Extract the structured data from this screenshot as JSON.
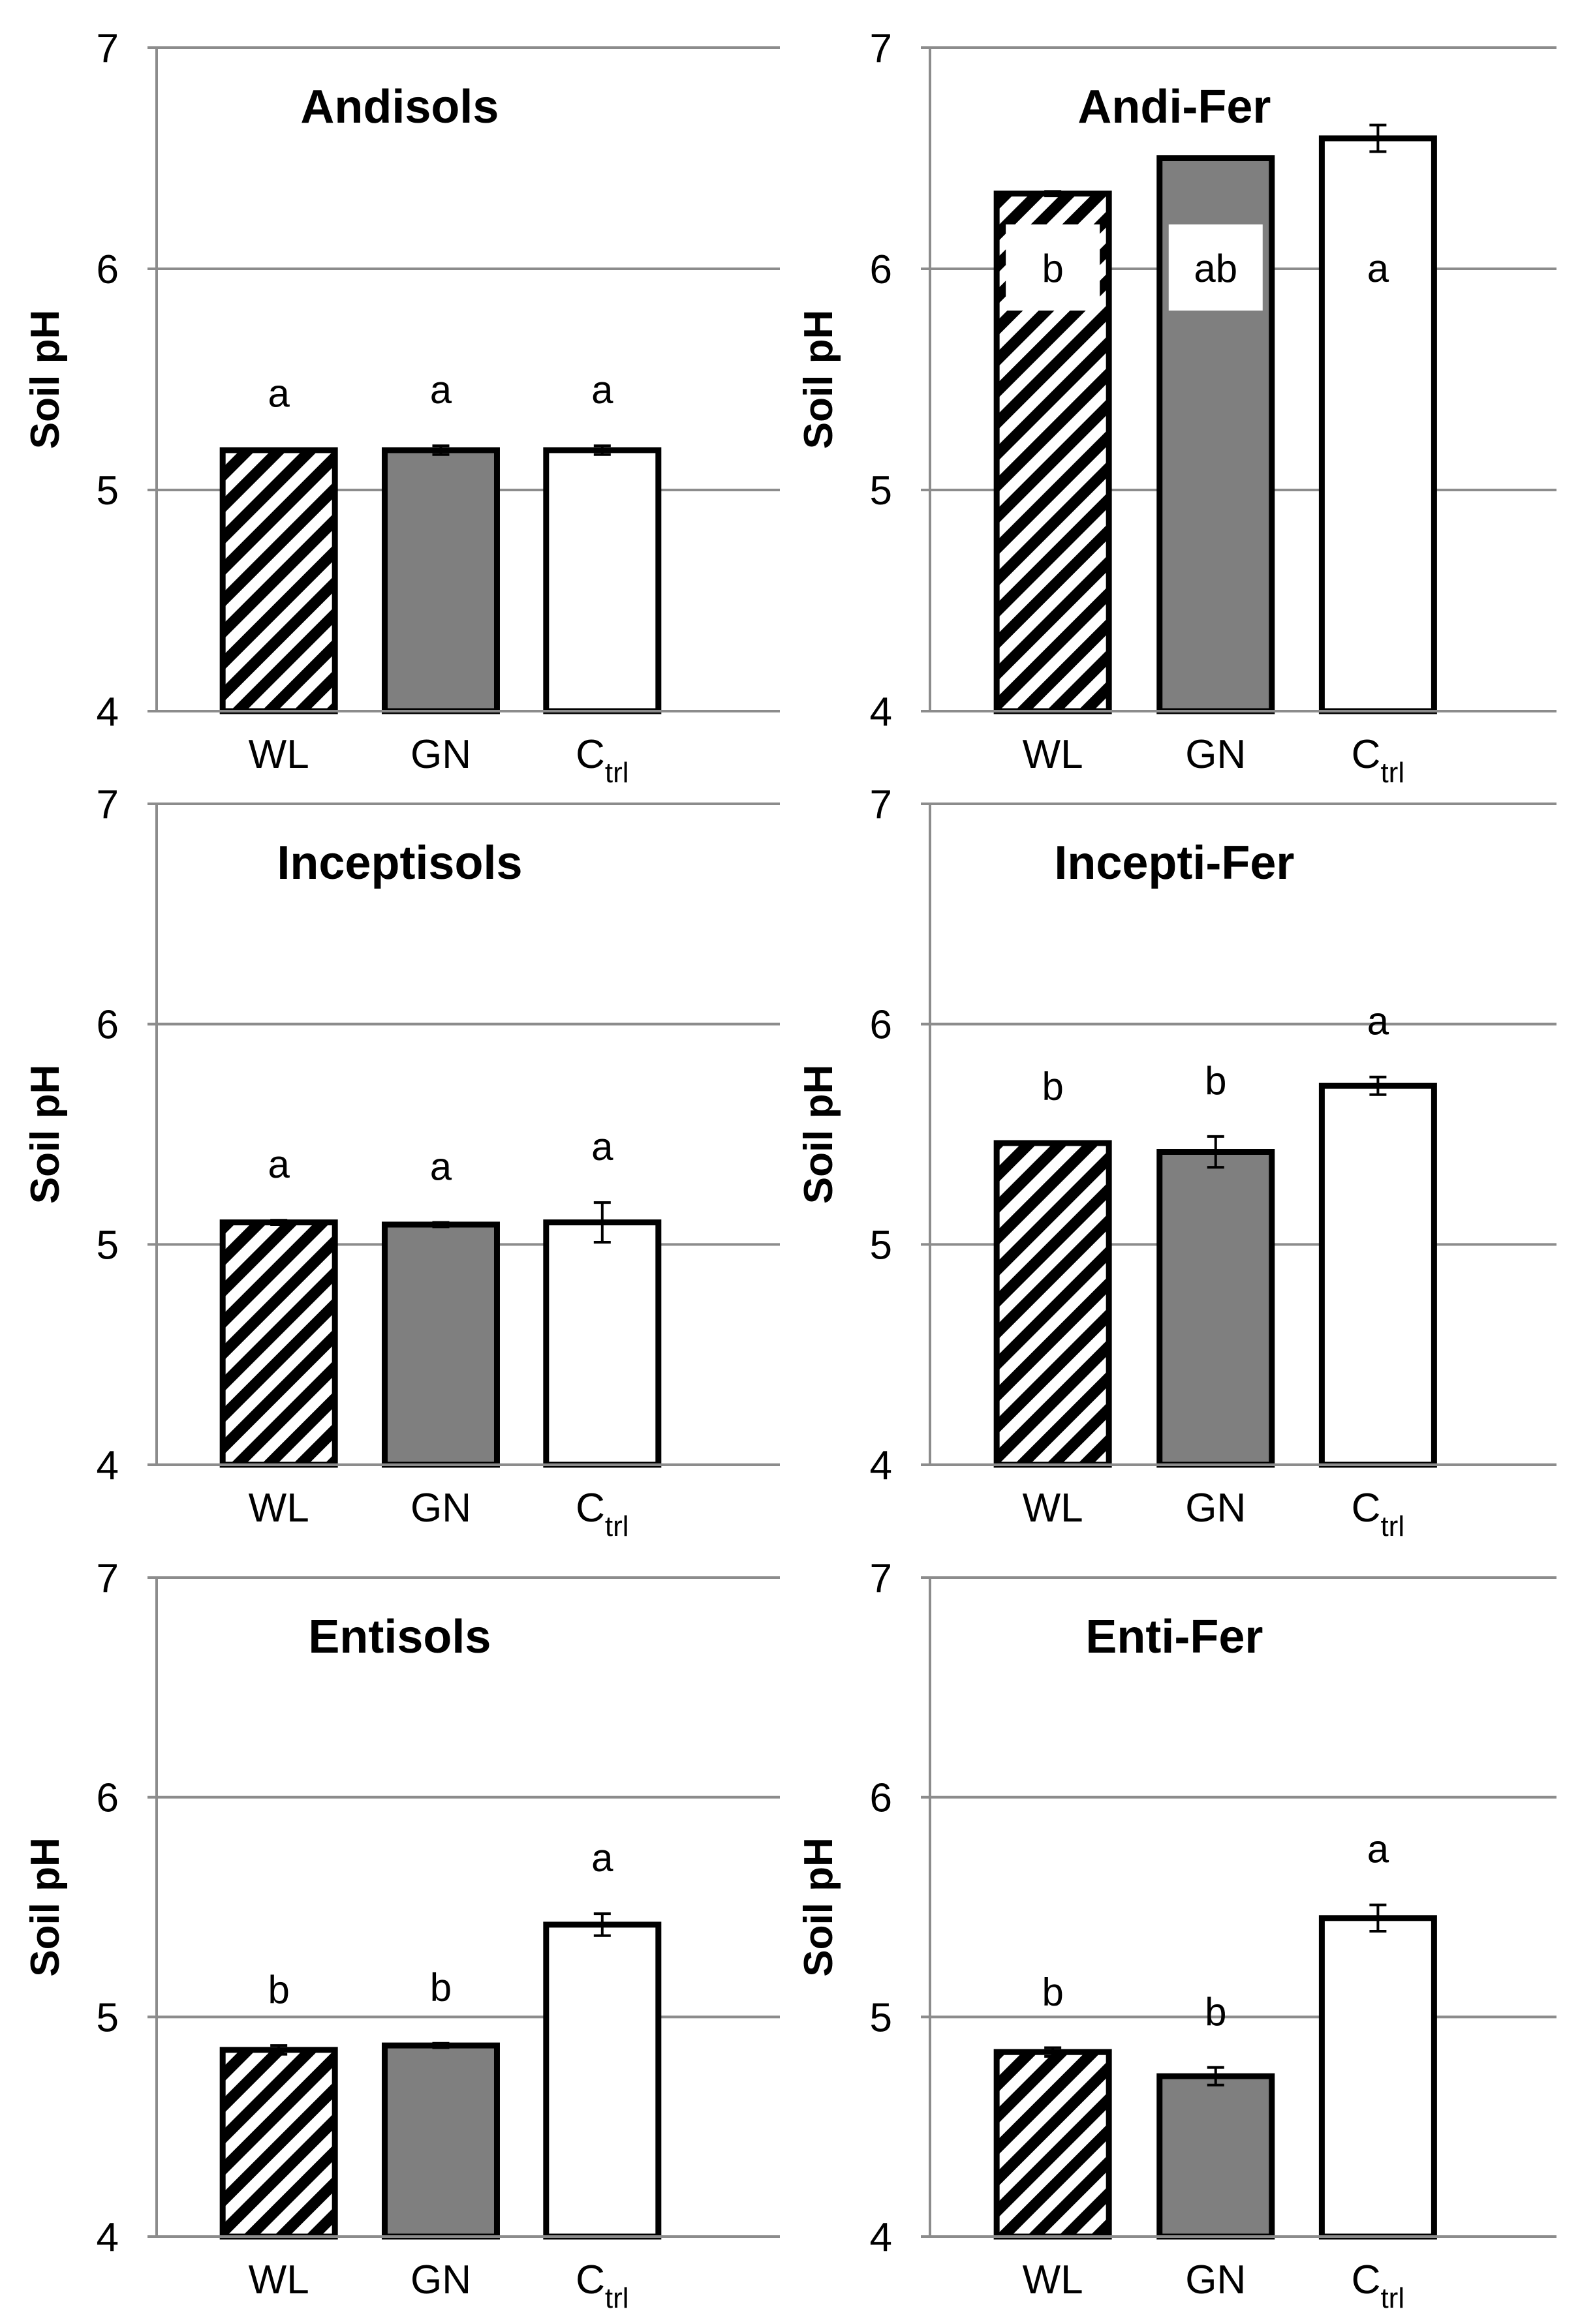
{
  "colors": {
    "wl_fill": "hatch",
    "gn_fill": "#7f7f7f",
    "ctrl_fill": "#ffffff",
    "grid": "#8c8c8c",
    "bar_edge": "#000000"
  },
  "chart_data": [
    {
      "type": "bar",
      "title": "Andisols",
      "ylabel": "Soil pH",
      "ylim": [
        4,
        7
      ],
      "yticks": [
        "4",
        "5",
        "6",
        "7"
      ],
      "categories": [
        "WL",
        "GN",
        "Ctrl"
      ],
      "category_labels": [
        {
          "main": "WL",
          "sub": ""
        },
        {
          "main": "GN",
          "sub": ""
        },
        {
          "main": "C",
          "sub": "trl"
        }
      ],
      "values": [
        5.18,
        5.18,
        5.18
      ],
      "errors": [
        0.005,
        0.02,
        0.02
      ],
      "significance": [
        "a",
        "a",
        "a"
      ]
    },
    {
      "type": "bar",
      "title": "Andi-Fer",
      "ylabel": "Soil pH",
      "ylim": [
        4,
        7
      ],
      "yticks": [
        "4",
        "5",
        "6",
        "7"
      ],
      "categories": [
        "WL",
        "GN",
        "Ctrl"
      ],
      "category_labels": [
        {
          "main": "WL",
          "sub": ""
        },
        {
          "main": "GN",
          "sub": ""
        },
        {
          "main": "C",
          "sub": "trl"
        }
      ],
      "values": [
        6.34,
        6.5,
        6.59
      ],
      "errors": [
        0.01,
        0.005,
        0.06
      ],
      "significance": [
        "b",
        "ab",
        "a"
      ]
    },
    {
      "type": "bar",
      "title": "Inceptisols",
      "ylabel": "Soil pH",
      "ylim": [
        4,
        7
      ],
      "yticks": [
        "4",
        "5",
        "6",
        "7"
      ],
      "categories": [
        "WL",
        "GN",
        "Ctrl"
      ],
      "category_labels": [
        {
          "main": "WL",
          "sub": ""
        },
        {
          "main": "GN",
          "sub": ""
        },
        {
          "main": "C",
          "sub": "trl"
        }
      ],
      "values": [
        5.1,
        5.09,
        5.1
      ],
      "errors": [
        0.01,
        0.01,
        0.09
      ],
      "significance": [
        "a",
        "a",
        "a"
      ]
    },
    {
      "type": "bar",
      "title": "Incepti-Fer",
      "ylabel": "Soil pH",
      "ylim": [
        4,
        7
      ],
      "yticks": [
        "4",
        "5",
        "6",
        "7"
      ],
      "categories": [
        "WL",
        "GN",
        "Ctrl"
      ],
      "category_labels": [
        {
          "main": "WL",
          "sub": ""
        },
        {
          "main": "GN",
          "sub": ""
        },
        {
          "main": "C",
          "sub": "trl"
        }
      ],
      "values": [
        5.46,
        5.42,
        5.72
      ],
      "errors": [
        0.005,
        0.07,
        0.04
      ],
      "significance": [
        "b",
        "b",
        "a"
      ]
    },
    {
      "type": "bar",
      "title": "Entisols",
      "ylabel": "Soil pH",
      "ylim": [
        4,
        7
      ],
      "yticks": [
        "4",
        "5",
        "6",
        "7"
      ],
      "categories": [
        "WL",
        "GN",
        "Ctrl"
      ],
      "category_labels": [
        {
          "main": "WL",
          "sub": ""
        },
        {
          "main": "GN",
          "sub": ""
        },
        {
          "main": "C",
          "sub": "trl"
        }
      ],
      "values": [
        4.85,
        4.87,
        5.42
      ],
      "errors": [
        0.02,
        0.01,
        0.05
      ],
      "significance": [
        "b",
        "b",
        "a"
      ]
    },
    {
      "type": "bar",
      "title": "Enti-Fer",
      "ylabel": "Soil pH",
      "ylim": [
        4,
        7
      ],
      "yticks": [
        "4",
        "5",
        "6",
        "7"
      ],
      "categories": [
        "WL",
        "GN",
        "Ctrl"
      ],
      "category_labels": [
        {
          "main": "WL",
          "sub": ""
        },
        {
          "main": "GN",
          "sub": ""
        },
        {
          "main": "C",
          "sub": "trl"
        }
      ],
      "values": [
        4.84,
        4.73,
        5.45
      ],
      "errors": [
        0.02,
        0.04,
        0.06
      ],
      "significance": [
        "b",
        "b",
        "a"
      ]
    }
  ]
}
